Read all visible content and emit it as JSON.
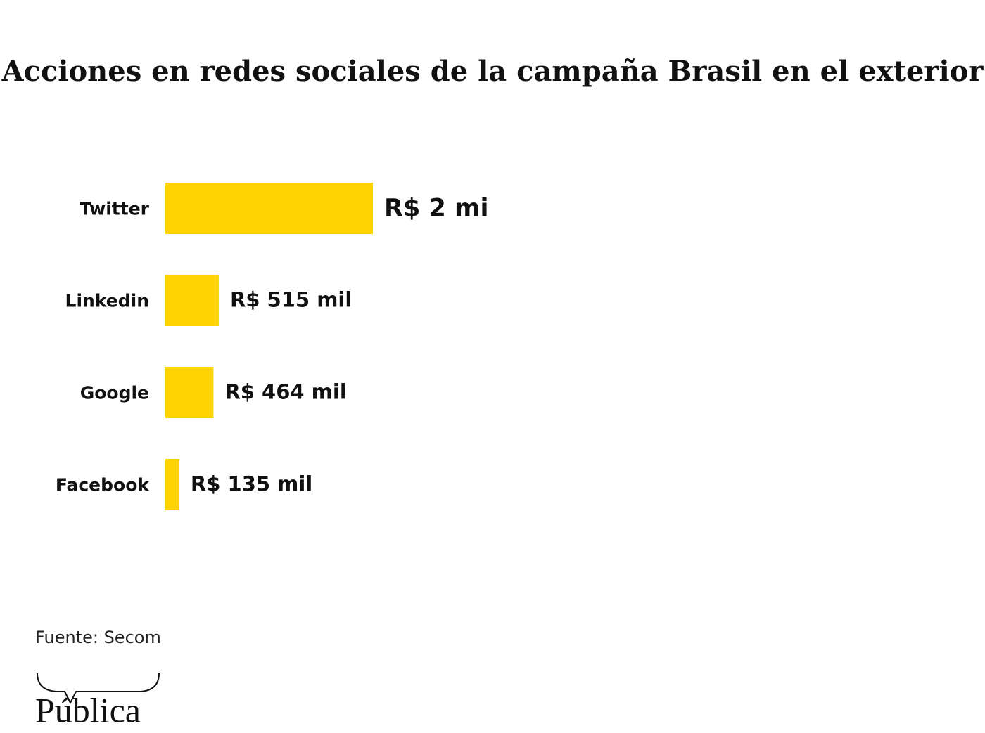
{
  "chart_data": {
    "type": "bar",
    "orientation": "horizontal",
    "title": "Acciones en redes sociales de la campaña Brasil en el exterior",
    "categories": [
      "Twitter",
      "Linkedin",
      "Google",
      "Facebook"
    ],
    "values": [
      2000000,
      515000,
      464000,
      135000
    ],
    "value_labels": [
      "R$ 2 mi",
      "R$ 515 mil",
      "R$ 464 mil",
      "R$ 135 mil"
    ],
    "color": "#fdd303",
    "source": "Fuente: Secom",
    "logo": "Pública"
  }
}
